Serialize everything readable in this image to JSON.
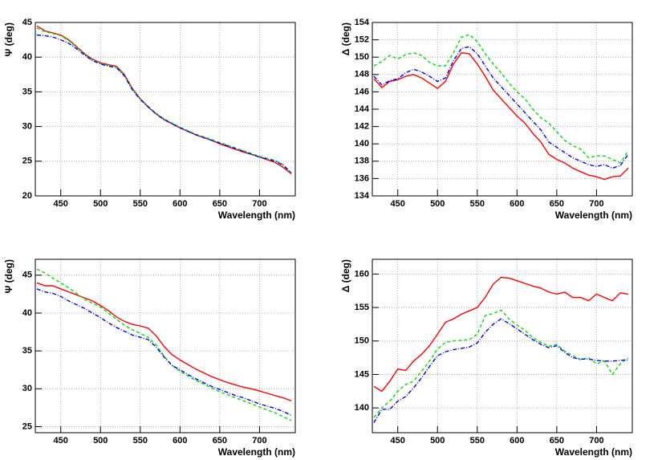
{
  "chart_data": [
    {
      "type": "line",
      "xlabel": "Wavelength (nm)",
      "ylabel": "Ψ (deg)",
      "xlim": [
        418,
        745
      ],
      "ylim": [
        20,
        45
      ],
      "xticks": [
        450,
        500,
        550,
        600,
        650,
        700
      ],
      "yticks": [
        20,
        25,
        30,
        35,
        40,
        45
      ],
      "grid": true,
      "x": [
        420,
        430,
        440,
        450,
        460,
        470,
        480,
        490,
        500,
        510,
        520,
        530,
        540,
        550,
        560,
        570,
        580,
        590,
        600,
        610,
        620,
        630,
        640,
        650,
        660,
        670,
        680,
        690,
        700,
        710,
        720,
        730,
        740
      ],
      "series": [
        {
          "color": "#ff0000",
          "linestyle": "solid",
          "values": [
            44.5,
            43.8,
            43.5,
            43.2,
            42.5,
            41.5,
            40.5,
            39.7,
            39.2,
            38.9,
            38.7,
            37.5,
            35.5,
            34,
            32.8,
            31.8,
            31,
            30.4,
            29.8,
            29.3,
            28.8,
            28.4,
            28,
            27.5,
            27.1,
            26.7,
            26.3,
            26,
            25.6,
            25.2,
            24.8,
            24.1,
            23.2
          ]
        },
        {
          "color": "#00dd00",
          "linestyle": "dashed",
          "values": [
            44.2,
            43.7,
            43.4,
            43.1,
            42.4,
            41.4,
            40.4,
            39.6,
            39.1,
            38.8,
            38.6,
            37.4,
            35.4,
            34,
            32.9,
            31.9,
            31.1,
            30.5,
            29.9,
            29.4,
            28.9,
            28.5,
            28.1,
            27.7,
            27.3,
            26.9,
            26.5,
            26.1,
            25.7,
            25.4,
            25.1,
            24.5,
            23.3
          ]
        },
        {
          "color": "#0000ff",
          "linestyle": "dashdot",
          "values": [
            43.2,
            43.1,
            42.9,
            42.5,
            42,
            41.2,
            40.3,
            39.5,
            39,
            38.7,
            38.5,
            37.3,
            35.3,
            33.9,
            32.8,
            31.8,
            31,
            30.4,
            29.8,
            29.3,
            28.8,
            28.4,
            28,
            27.6,
            27.2,
            26.8,
            26.4,
            26,
            25.6,
            25.3,
            25,
            24.4,
            23.3
          ]
        }
      ]
    },
    {
      "type": "line",
      "xlabel": "Wavelength (nm)",
      "ylabel": "Δ (deg)",
      "xlim": [
        418,
        745
      ],
      "ylim": [
        134,
        154
      ],
      "xticks": [
        450,
        500,
        550,
        600,
        650,
        700
      ],
      "yticks": [
        134,
        136,
        138,
        140,
        142,
        144,
        146,
        148,
        150,
        152,
        154
      ],
      "grid": true,
      "x": [
        420,
        430,
        440,
        450,
        460,
        470,
        480,
        490,
        500,
        510,
        520,
        530,
        540,
        550,
        560,
        570,
        580,
        590,
        600,
        610,
        620,
        630,
        640,
        650,
        660,
        670,
        680,
        690,
        700,
        710,
        720,
        730,
        740
      ],
      "series": [
        {
          "color": "#ff0000",
          "linestyle": "solid",
          "values": [
            147.5,
            146.5,
            147.2,
            147.4,
            147.8,
            148,
            147.6,
            147,
            146.4,
            147.2,
            149.2,
            150.5,
            150.4,
            149.2,
            147.8,
            146.2,
            145.2,
            144.2,
            143.2,
            142.4,
            141.2,
            140.2,
            138.8,
            138.2,
            137.8,
            137.2,
            136.8,
            136.4,
            136.2,
            135.9,
            136.2,
            136.3,
            137.2
          ]
        },
        {
          "color": "#00dd00",
          "linestyle": "dashed",
          "values": [
            149,
            149.5,
            150.2,
            149.8,
            150.3,
            150.5,
            150.2,
            149.4,
            149,
            149,
            150.5,
            152.3,
            152.6,
            151.8,
            150.4,
            149.2,
            148.2,
            147,
            146,
            145.2,
            144,
            143,
            142.4,
            141.4,
            140.4,
            139.8,
            139.4,
            138.4,
            138.6,
            138.6,
            138.2,
            137.8,
            139.2
          ]
        },
        {
          "color": "#0000ff",
          "linestyle": "dashdot",
          "values": [
            147.8,
            146.8,
            147.3,
            147.5,
            148.2,
            148.6,
            148.3,
            147.8,
            147.2,
            147.6,
            149.6,
            151,
            151.2,
            150.4,
            149,
            147.6,
            146.6,
            145.6,
            144.6,
            143.6,
            142.6,
            141.6,
            140.2,
            139.6,
            139,
            138.4,
            138,
            137.6,
            137.4,
            137.6,
            137.2,
            137.5,
            138.8
          ]
        }
      ]
    },
    {
      "type": "line",
      "xlabel": "Wavelength (nm)",
      "ylabel": "Ψ (deg)",
      "xlim": [
        418,
        745
      ],
      "ylim": [
        24.2,
        47.1
      ],
      "xticks": [
        450,
        500,
        550,
        600,
        650,
        700
      ],
      "yticks": [
        25,
        30,
        35,
        40,
        45
      ],
      "grid": true,
      "x": [
        420,
        430,
        440,
        450,
        460,
        470,
        480,
        490,
        500,
        510,
        520,
        530,
        540,
        550,
        560,
        570,
        580,
        590,
        600,
        610,
        620,
        630,
        640,
        650,
        660,
        670,
        680,
        690,
        700,
        710,
        720,
        730,
        740
      ],
      "series": [
        {
          "color": "#ff0000",
          "linestyle": "solid",
          "values": [
            44,
            43.6,
            43.6,
            43.2,
            42.8,
            42.4,
            42,
            41.6,
            41,
            40.3,
            39.5,
            38.9,
            38.5,
            38.3,
            38,
            37,
            35.6,
            34.5,
            33.8,
            33.2,
            32.6,
            32.1,
            31.6,
            31.2,
            30.8,
            30.5,
            30.2,
            30,
            29.7,
            29.4,
            29.1,
            28.8,
            28.4
          ]
        },
        {
          "color": "#00dd00",
          "linestyle": "dashed",
          "values": [
            45.8,
            45.3,
            44.6,
            44,
            43.3,
            42.6,
            41.8,
            41.3,
            40.8,
            40,
            39.2,
            38.4,
            37.8,
            37.3,
            36.8,
            35.8,
            34.3,
            33.1,
            32.3,
            31.7,
            31.1,
            30.6,
            30.1,
            29.6,
            29.2,
            28.8,
            28.4,
            28,
            27.6,
            27.2,
            26.8,
            26.3,
            25.8
          ]
        },
        {
          "color": "#0000ff",
          "linestyle": "dashdot",
          "values": [
            43.2,
            42.8,
            42.6,
            42.2,
            41.6,
            41.1,
            40.6,
            40,
            39.4,
            38.7,
            38.1,
            37.6,
            37.1,
            36.8,
            36.5,
            35.5,
            34.2,
            33.1,
            32.5,
            31.9,
            31.3,
            30.8,
            30.3,
            29.9,
            29.5,
            29.1,
            28.8,
            28.4,
            28,
            27.7,
            27.4,
            27,
            26.5
          ]
        }
      ]
    },
    {
      "type": "line",
      "xlabel": "Wavelength (nm)",
      "ylabel": "Δ (deg)",
      "xlim": [
        418,
        745
      ],
      "ylim": [
        136.3,
        162.2
      ],
      "xticks": [
        450,
        500,
        550,
        600,
        650,
        700
      ],
      "yticks": [
        140,
        145,
        150,
        155,
        160
      ],
      "grid": true,
      "x": [
        420,
        430,
        440,
        450,
        460,
        470,
        480,
        490,
        500,
        510,
        520,
        530,
        540,
        550,
        560,
        570,
        580,
        590,
        600,
        610,
        620,
        630,
        640,
        650,
        660,
        670,
        680,
        690,
        700,
        710,
        720,
        730,
        740
      ],
      "series": [
        {
          "color": "#ff0000",
          "linestyle": "solid",
          "values": [
            143.2,
            142.5,
            144,
            145.8,
            145.6,
            147,
            148,
            149.3,
            151,
            152.8,
            153.3,
            154,
            154.5,
            155,
            156.5,
            158.5,
            159.5,
            159.4,
            159,
            158.6,
            158.2,
            157.9,
            157.3,
            157,
            157.3,
            156.5,
            156.5,
            156,
            157,
            156.5,
            156,
            157.2,
            157
          ]
        },
        {
          "color": "#00dd00",
          "linestyle": "dashed",
          "values": [
            138.6,
            140,
            141,
            142.5,
            143.5,
            144,
            145.5,
            147,
            148.8,
            149.8,
            150,
            150.1,
            150.2,
            151,
            153.8,
            154.1,
            154.6,
            153.3,
            152.4,
            151.6,
            150.5,
            149.8,
            149.2,
            149.5,
            148.5,
            147.8,
            147.2,
            147.5,
            146.6,
            147,
            145,
            146.6,
            147.5
          ]
        },
        {
          "color": "#0000ff",
          "linestyle": "dashdot",
          "values": [
            137.8,
            139.8,
            139.8,
            141,
            141.7,
            143,
            144.5,
            146.2,
            147.8,
            148.4,
            148.7,
            148.9,
            149.1,
            149.7,
            151.3,
            152.5,
            153.3,
            152.6,
            151.8,
            151,
            150.2,
            149.5,
            149,
            149.3,
            148.3,
            147.5,
            147.3,
            147.3,
            147.1,
            147,
            147,
            147.1,
            147.2
          ]
        }
      ]
    }
  ]
}
